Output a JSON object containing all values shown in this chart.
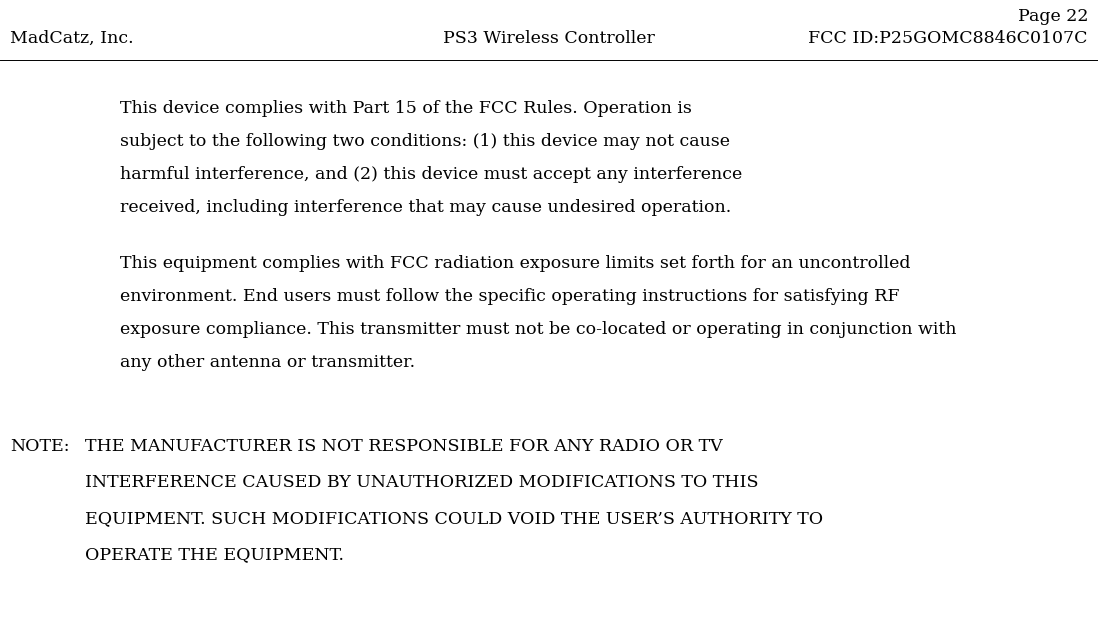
{
  "bg_color": "#ffffff",
  "header_page": "Page 22",
  "header_left": "MadCatz, Inc.",
  "header_center": "PS3 Wireless Controller",
  "header_right": "FCC ID:P25GOMC8846C0107C",
  "header_font_size": 12.5,
  "para1_lines": [
    "This device complies with Part 15 of the FCC Rules. Operation is",
    "subject to the following two conditions: (1) this device may not cause",
    "harmful interference, and (2) this device must accept any interference",
    "received, including interference that may cause undesired operation."
  ],
  "para2_lines": [
    "This equipment complies with FCC radiation exposure limits set forth for an uncontrolled",
    "environment. End users must follow the specific operating instructions for satisfying RF",
    "exposure compliance. This transmitter must not be co-located or operating in conjunction with",
    "any other antenna or transmitter."
  ],
  "note_label": "NOTE:",
  "note_lines": [
    "THE MANUFACTURER IS NOT RESPONSIBLE FOR ANY RADIO OR TV",
    "INTERFERENCE CAUSED BY UNAUTHORIZED MODIFICATIONS TO THIS",
    "EQUIPMENT. SUCH MODIFICATIONS COULD VOID THE USER’S AUTHORITY TO",
    "OPERATE THE EQUIPMENT."
  ],
  "body_font_size": 12.5,
  "note_font_size": 12.5
}
